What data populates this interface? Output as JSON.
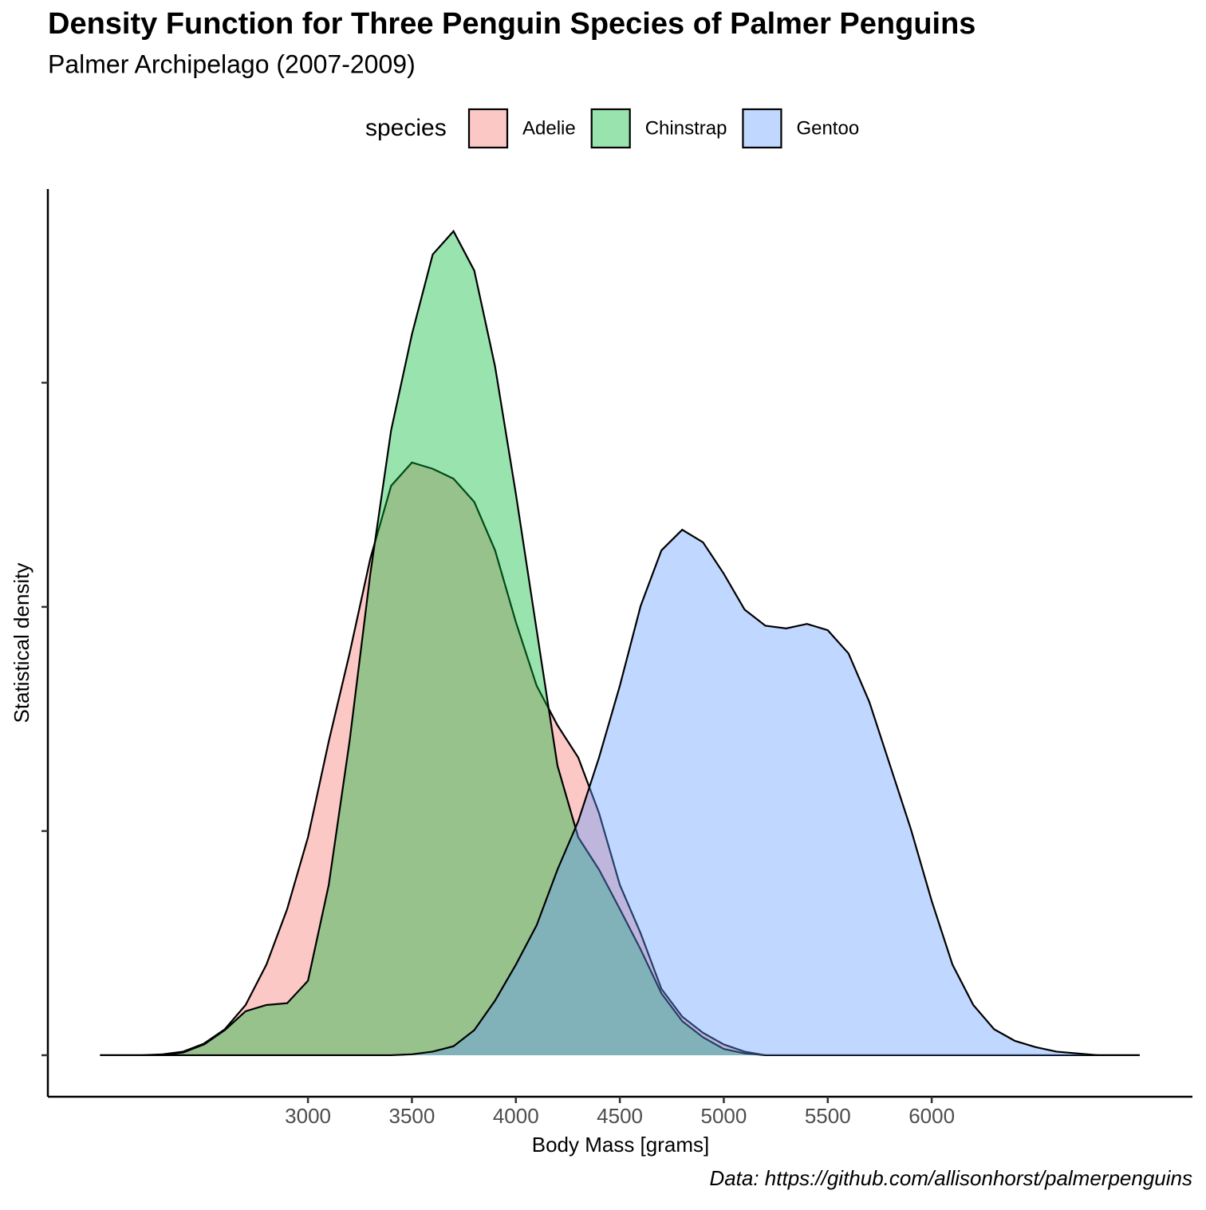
{
  "chart_data": {
    "type": "density",
    "title": "Density Function for Three Penguin Species of Palmer Penguins",
    "subtitle": "Palmer Archipelago (2007-2009)",
    "x_label": "Body Mass [grams]",
    "y_label": "Statistical density",
    "caption": "Data: https://github.com/allisonhorst/palmerpenguins",
    "legend_title": "species",
    "legend": "top",
    "fill_opacity": 0.4,
    "xlim": [
      1749,
      7254
    ],
    "xticks": [
      3000,
      3500,
      4000,
      4500,
      5000,
      5500,
      6000
    ],
    "ylim": [
      -4.63e-05,
      0.000966
    ],
    "yticks": [
      0,
      0.00025,
      0.0005,
      0.00075
    ],
    "x": [
      2000,
      2100,
      2200,
      2300,
      2400,
      2500,
      2600,
      2700,
      2800,
      2900,
      3000,
      3100,
      3200,
      3300,
      3400,
      3500,
      3600,
      3700,
      3800,
      3900,
      4000,
      4100,
      4200,
      4300,
      4400,
      4500,
      4600,
      4700,
      4800,
      4900,
      5000,
      5100,
      5200,
      5300,
      5400,
      5500,
      5600,
      5700,
      5800,
      5900,
      6000,
      6100,
      6200,
      6300,
      6400,
      6500,
      6600,
      6700,
      6800,
      6900,
      7000
    ],
    "series": [
      {
        "name": "Adelie",
        "color": "#F8766D",
        "values": [
          0,
          0,
          0,
          1e-06,
          4e-06,
          1.3e-05,
          2.9e-05,
          5.6e-05,
          0.000101,
          0.000163,
          0.000243,
          0.00035,
          0.000448,
          0.000554,
          0.000635,
          0.000661,
          0.000654,
          0.000643,
          0.000617,
          0.000563,
          0.000483,
          0.000412,
          0.000368,
          0.000332,
          0.00027,
          0.00019,
          0.000136,
          7.4e-05,
          4.3e-05,
          2.5e-05,
          1.2e-05,
          4e-06,
          0,
          0,
          0,
          0,
          0,
          0,
          0,
          0,
          0,
          0,
          0,
          0,
          0,
          0,
          0,
          0,
          0,
          0,
          0
        ]
      },
      {
        "name": "Chinstrap",
        "color": "#00BA38",
        "values": [
          0,
          0,
          0,
          0,
          3e-06,
          1.2e-05,
          2.8e-05,
          4.9e-05,
          5.6e-05,
          5.8e-05,
          8.3e-05,
          0.00019,
          0.00035,
          0.000537,
          0.000697,
          0.000804,
          0.000893,
          0.000919,
          0.000875,
          0.000768,
          0.000626,
          0.000474,
          0.000323,
          0.000243,
          0.000207,
          0.000163,
          0.000118,
          6.9e-05,
          3.8e-05,
          2e-05,
          7e-06,
          2e-06,
          0,
          0,
          0,
          0,
          0,
          0,
          0,
          0,
          0,
          0,
          0,
          0,
          0,
          0,
          0,
          0,
          0,
          0,
          0
        ]
      },
      {
        "name": "Gentoo",
        "color": "#619CFF",
        "values": [
          0,
          0,
          0,
          0,
          0,
          0,
          0,
          0,
          0,
          0,
          0,
          0,
          0,
          0,
          0,
          1e-06,
          4e-06,
          1e-05,
          2.8e-05,
          6.1e-05,
          0.000101,
          0.000145,
          0.000207,
          0.000261,
          0.000332,
          0.000412,
          0.000501,
          0.000563,
          0.000586,
          0.000572,
          0.000537,
          0.000497,
          0.000479,
          0.000476,
          0.000481,
          0.000474,
          0.000448,
          0.000394,
          0.000323,
          0.000252,
          0.000172,
          0.000101,
          5.6e-05,
          2.9e-05,
          1.6e-05,
          9e-06,
          4e-06,
          2e-06,
          0,
          0,
          0
        ]
      }
    ]
  }
}
